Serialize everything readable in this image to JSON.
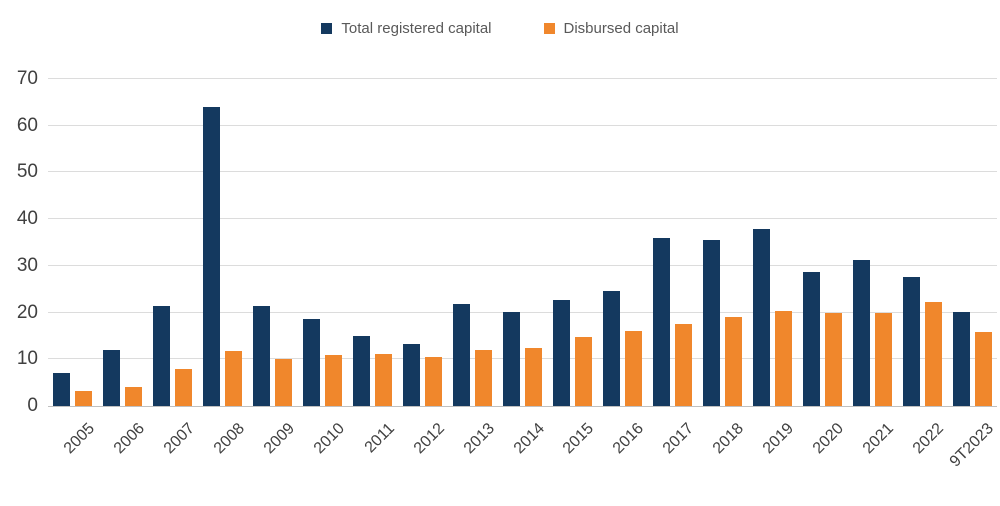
{
  "legend": {
    "items": [
      {
        "label": "Total registered capital",
        "color": "#14395f"
      },
      {
        "label": "Disbursed capital",
        "color": "#f0872c"
      }
    ]
  },
  "colors": {
    "registered": "#14395f",
    "disbursed": "#f0872c",
    "gridline": "#dcdcdc",
    "axis_line": "#c0c0c0",
    "axis_text": "#404040",
    "legend_text": "#595959"
  },
  "chart_data": {
    "type": "bar",
    "title": "",
    "xlabel": "",
    "ylabel": "",
    "categories": [
      "2005",
      "2006",
      "2007",
      "2008",
      "2009",
      "2010",
      "2011",
      "2012",
      "2013",
      "2014",
      "2015",
      "2016",
      "2017",
      "2018",
      "2019",
      "2020",
      "2021",
      "2022",
      "9T2023"
    ],
    "series": [
      {
        "name": "Total registered capital",
        "color": "#14395f",
        "values": [
          7.0,
          12.0,
          21.4,
          64.0,
          21.5,
          18.7,
          15.0,
          13.3,
          21.8,
          20.2,
          22.8,
          24.7,
          36.0,
          35.5,
          38.0,
          28.6,
          31.3,
          27.7,
          20.2
        ]
      },
      {
        "name": "Disbursed capital",
        "color": "#f0872c",
        "values": [
          3.3,
          4.1,
          8.0,
          11.8,
          10.0,
          11.0,
          11.2,
          10.5,
          11.9,
          12.5,
          14.8,
          16.0,
          17.6,
          19.1,
          20.4,
          20.0,
          19.9,
          22.3,
          15.9
        ]
      }
    ],
    "yticks": [
      0,
      10,
      20,
      30,
      40,
      50,
      60,
      70
    ],
    "ylim": [
      0,
      70
    ],
    "grid": true,
    "legend_position": "top"
  }
}
